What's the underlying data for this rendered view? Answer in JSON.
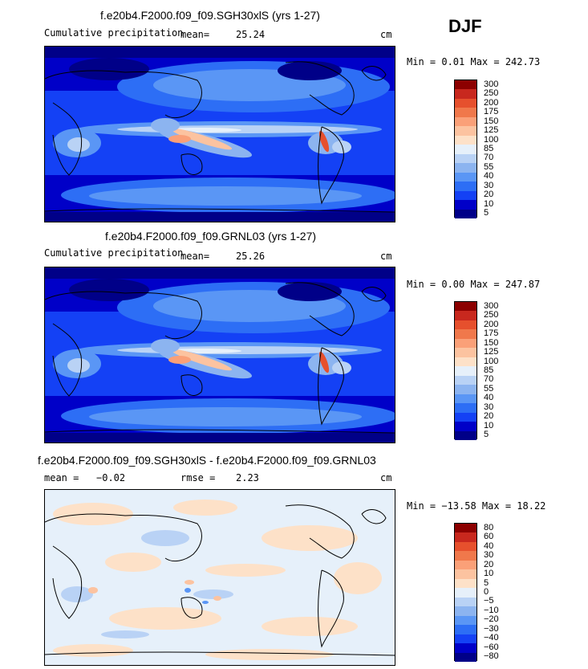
{
  "season_label": "DJF",
  "colors": {
    "precip_levels": [
      "#000088",
      "#0000c8",
      "#1441f5",
      "#2d6ef5",
      "#5a96f5",
      "#8cb4f0",
      "#b9d2f5",
      "#e6f0fa",
      "#fde1c8",
      "#fcc3a0",
      "#faa078",
      "#f0784b",
      "#e6502d",
      "#c8281e",
      "#8c0000"
    ],
    "diff_levels": [
      "#000088",
      "#0000c8",
      "#1441f5",
      "#2d6ef5",
      "#5a96f5",
      "#8cb4f0",
      "#b9d2f5",
      "#e6f0fa",
      "#fde1c8",
      "#fcc3a0",
      "#faa078",
      "#f0784b",
      "#e6502d",
      "#c8281e",
      "#8c0000"
    ]
  },
  "panels": [
    {
      "title": "f.e20b4.F2000.f09_f09.SGH30xlS (yrs 1-27)",
      "left_label": "Cumulative precipitation",
      "stat1_label": "mean=",
      "stat1_value": "25.24",
      "units": "cm",
      "minmax": "Min =    0.01 Max = 242.73"
    },
    {
      "title": "f.e20b4.F2000.f09_f09.GRNL03 (yrs 1-27)",
      "left_label": "Cumulative precipitation",
      "stat1_label": "mean=",
      "stat1_value": "25.26",
      "units": "cm",
      "minmax": "Min =    0.00 Max = 247.87"
    },
    {
      "title": "f.e20b4.F2000.f09_f09.SGH30xlS - f.e20b4.F2000.f09_f09.GRNL03",
      "left_label": "mean =",
      "stat1_value": "−0.02",
      "stat2_label": "rmse =",
      "stat2_value": "2.23",
      "units": "cm",
      "minmax": "Min = −13.58 Max =   18.22"
    }
  ],
  "chart_data": [
    {
      "type": "heatmap",
      "title": "f.e20b4.F2000.f09_f09.SGH30xlS (yrs 1-27)",
      "variable": "Cumulative precipitation",
      "units": "cm",
      "mean": 25.24,
      "min": 0.01,
      "max": 242.73,
      "contour_levels": [
        "5",
        "10",
        "20",
        "30",
        "40",
        "55",
        "70",
        "85",
        "100",
        "125",
        "150",
        "175",
        "200",
        "250",
        "300"
      ]
    },
    {
      "type": "heatmap",
      "title": "f.e20b4.F2000.f09_f09.GRNL03 (yrs 1-27)",
      "variable": "Cumulative precipitation",
      "units": "cm",
      "mean": 25.26,
      "min": 0.0,
      "max": 247.87,
      "contour_levels": [
        "5",
        "10",
        "20",
        "30",
        "40",
        "55",
        "70",
        "85",
        "100",
        "125",
        "150",
        "175",
        "200",
        "250",
        "300"
      ]
    },
    {
      "type": "heatmap",
      "title": "f.e20b4.F2000.f09_f09.SGH30xlS - f.e20b4.F2000.f09_f09.GRNL03",
      "units": "cm",
      "mean": -0.02,
      "rmse": 2.23,
      "min": -13.58,
      "max": 18.22,
      "contour_levels": [
        "−80",
        "−60",
        "−40",
        "−30",
        "−20",
        "−10",
        "−5",
        "0",
        "5",
        "10",
        "20",
        "30",
        "40",
        "60",
        "80"
      ]
    }
  ]
}
